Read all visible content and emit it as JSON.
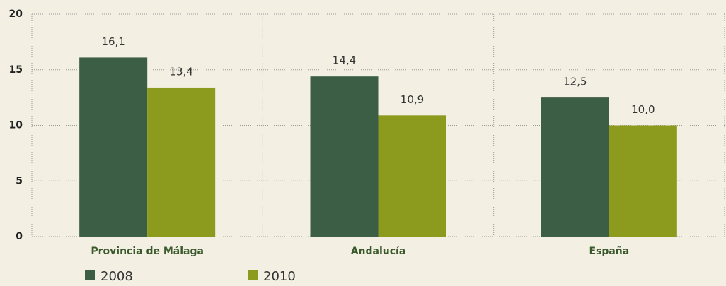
{
  "chart_data": {
    "type": "bar",
    "categories": [
      "Provincia de Málaga",
      "Andalucía",
      "España"
    ],
    "series": [
      {
        "name": "2008",
        "color": "#3b5e45",
        "values": [
          16.1,
          14.4,
          12.5
        ],
        "value_labels": [
          "16,1",
          "14,4",
          "12,5"
        ]
      },
      {
        "name": "2010",
        "color": "#8c9a1e",
        "values": [
          13.4,
          10.9,
          10.0
        ],
        "value_labels": [
          "13,4",
          "10,9",
          "10,0"
        ]
      }
    ],
    "ylim": [
      0,
      20
    ],
    "yticks": [
      0,
      5,
      10,
      15,
      20
    ],
    "grid": true,
    "legend": "bottom"
  }
}
